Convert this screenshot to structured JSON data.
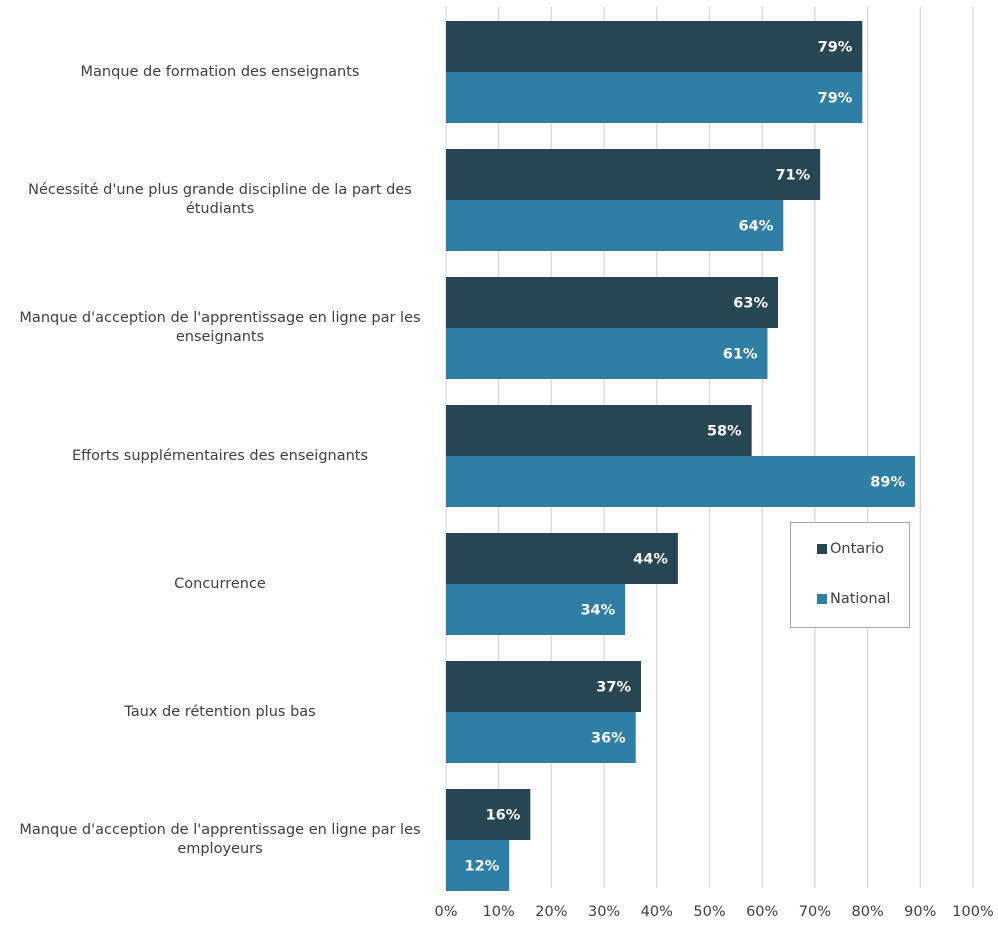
{
  "chart_data": {
    "type": "bar",
    "orientation": "horizontal",
    "categories": [
      "Manque de formation des enseignants",
      "Nécessité d'une plus grande discipline de la part des étudiants",
      "Manque d'acception de l'apprentissage en ligne par les enseignants",
      "Efforts supplémentaires des enseignants",
      "Concurrence",
      "Taux de rétention plus bas",
      "Manque d'acception de l'apprentissage en ligne par les employeurs"
    ],
    "series": [
      {
        "name": "Ontario",
        "color": "#264653",
        "values": [
          79,
          71,
          63,
          58,
          44,
          37,
          16
        ],
        "labels": [
          "79%",
          "71%",
          "63%",
          "58%",
          "44%",
          "37%",
          "16%"
        ]
      },
      {
        "name": "National",
        "color": "#2e7ea6",
        "values": [
          79,
          64,
          61,
          89,
          34,
          36,
          12
        ],
        "labels": [
          "79%",
          "64%",
          "61%",
          "89%",
          "34%",
          "36%",
          "12%"
        ]
      }
    ],
    "xlim": [
      0,
      100
    ],
    "xticks": [
      "0%",
      "10%",
      "20%",
      "30%",
      "40%",
      "50%",
      "60%",
      "70%",
      "80%",
      "90%",
      "100%"
    ],
    "grid": true,
    "legend_position": "right"
  }
}
